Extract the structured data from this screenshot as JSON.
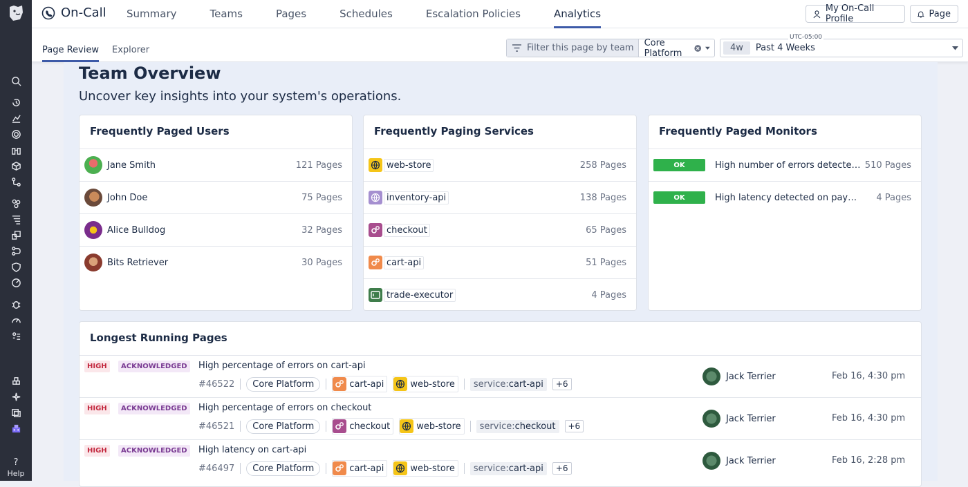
{
  "app": {
    "title": "On-Call"
  },
  "nav_tabs": [
    {
      "label": "Summary"
    },
    {
      "label": "Teams"
    },
    {
      "label": "Pages"
    },
    {
      "label": "Schedules"
    },
    {
      "label": "Escalation Policies"
    },
    {
      "label": "Analytics"
    }
  ],
  "top_buttons": {
    "profile": "My On-Call Profile",
    "page": "Page"
  },
  "sub_tabs": [
    {
      "label": "Page Review"
    },
    {
      "label": "Explorer"
    }
  ],
  "filter": {
    "label": "Filter this page by team",
    "value": "Core Platform"
  },
  "time": {
    "timezone": "UTC-05:00",
    "chip": "4w",
    "value": "Past 4 Weeks"
  },
  "leftnav": {
    "help": "Help"
  },
  "main": {
    "title": "Team Overview",
    "subtitle": "Uncover key insights into your system's operations."
  },
  "users_card": {
    "title": "Frequently Paged Users",
    "rows": [
      {
        "name": "Jane Smith",
        "count": "121 Pages"
      },
      {
        "name": "John Doe",
        "count": "75 Pages"
      },
      {
        "name": "Alice Bulldog",
        "count": "32 Pages"
      },
      {
        "name": "Bits Retriever",
        "count": "30 Pages"
      }
    ]
  },
  "services_card": {
    "title": "Frequently Paging Services",
    "rows": [
      {
        "name": "web-store",
        "count": "258 Pages",
        "icon": "globe-icon",
        "color": "#f5c518"
      },
      {
        "name": "inventory-api",
        "count": "138 Pages",
        "icon": "globe-icon",
        "color": "#a58fd0"
      },
      {
        "name": "checkout",
        "count": "65 Pages",
        "icon": "gears-icon",
        "color": "#a84d8e"
      },
      {
        "name": "cart-api",
        "count": "51 Pages",
        "icon": "gears-icon",
        "color": "#f08a4b"
      },
      {
        "name": "trade-executor",
        "count": "4 Pages",
        "icon": "server-icon",
        "color": "#3f7d4b"
      }
    ]
  },
  "monitors_card": {
    "title": "Frequently Paged Monitors",
    "rows": [
      {
        "status": "OK",
        "name": "High number of errors detected on...",
        "count": "510 Pages"
      },
      {
        "status": "OK",
        "name": "High latency detected on payments...",
        "count": "4 Pages"
      }
    ]
  },
  "longest": {
    "title": "Longest Running Pages",
    "rows": [
      {
        "urgency": "HIGH",
        "status": "ACKNOWLEDGED",
        "title": "High percentage of errors on cart-api",
        "id": "#46522",
        "team": "Core Platform",
        "svc1": "cart-api",
        "svc2": "web-store",
        "tag_key": "service:",
        "tag_val": "cart-api",
        "more": "+6",
        "assignee": "Jack Terrier",
        "date": "Feb 16, 4:30 pm"
      },
      {
        "urgency": "HIGH",
        "status": "ACKNOWLEDGED",
        "title": "High percentage of errors on checkout",
        "id": "#46521",
        "team": "Core Platform",
        "svc1": "checkout",
        "svc2": "web-store",
        "tag_key": "service:",
        "tag_val": "checkout",
        "more": "+6",
        "assignee": "Jack Terrier",
        "date": "Feb 16, 4:30 pm"
      },
      {
        "urgency": "HIGH",
        "status": "ACKNOWLEDGED",
        "title": "High latency on cart-api",
        "id": "#46497",
        "team": "Core Platform",
        "svc1": "cart-api",
        "svc2": "web-store",
        "tag_key": "service:",
        "tag_val": "cart-api",
        "more": "+6",
        "assignee": "Jack Terrier",
        "date": "Feb 16, 2:28 pm"
      }
    ]
  }
}
